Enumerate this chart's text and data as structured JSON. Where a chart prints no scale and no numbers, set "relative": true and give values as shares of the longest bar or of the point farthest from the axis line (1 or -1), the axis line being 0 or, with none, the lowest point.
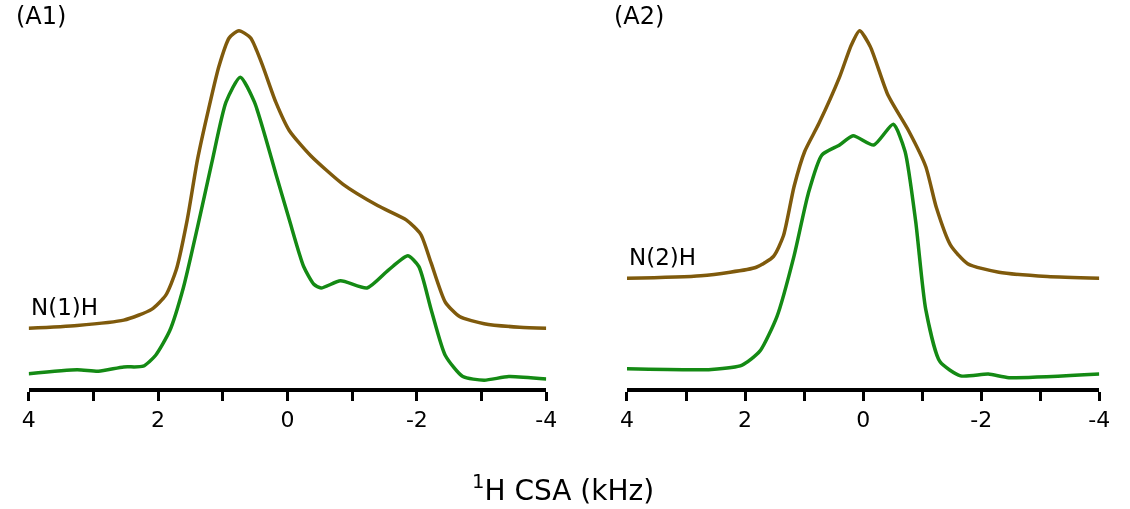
{
  "chart_data": [
    {
      "type": "line",
      "title": "(A1)",
      "xlabel": "$^{1}$H CSA (kHz)",
      "relative": true,
      "xlim": [
        4,
        -4
      ],
      "xticks": [
        4,
        {
          "value": 3,
          "label": null
        },
        2,
        {
          "value": 1,
          "label": null
        },
        0,
        {
          "value": -1,
          "label": null
        },
        -2,
        {
          "value": -3,
          "label": null
        },
        -4
      ],
      "legend": false,
      "marker": "none",
      "line_style": "solid",
      "series": [
        {
          "name": "N(1)H",
          "color": "#7f5a0c",
          "x": [
            4.0,
            3.25,
            2.53,
            2.1,
            1.88,
            1.72,
            1.55,
            1.39,
            1.22,
            1.06,
            0.9,
            0.75,
            0.57,
            0.4,
            0.18,
            -0.03,
            -0.36,
            -0.86,
            -1.4,
            -1.84,
            -2.06,
            -2.22,
            -2.44,
            -2.66,
            -3.04,
            -3.59,
            -4.0
          ],
          "values": [
            0.167,
            0.175,
            0.19,
            0.22,
            0.26,
            0.33,
            0.47,
            0.64,
            0.78,
            0.9,
            0.98,
            1.0,
            0.98,
            0.91,
            0.8,
            0.72,
            0.65,
            0.57,
            0.51,
            0.47,
            0.43,
            0.35,
            0.24,
            0.2,
            0.18,
            0.17,
            0.167
          ]
        },
        {
          "color": "#148a14",
          "x": [
            4.0,
            3.25,
            2.92,
            2.53,
            2.23,
            2.04,
            1.82,
            1.61,
            1.39,
            1.17,
            0.95,
            0.73,
            0.51,
            0.18,
            -0.03,
            -0.25,
            -0.41,
            -0.52,
            -0.82,
            -1.23,
            -1.56,
            -1.86,
            -2.03,
            -2.22,
            -2.44,
            -2.71,
            -3.04,
            -3.42,
            -4.0
          ],
          "values": [
            0.04,
            0.051,
            0.047,
            0.059,
            0.061,
            0.091,
            0.16,
            0.28,
            0.45,
            0.63,
            0.8,
            0.87,
            0.8,
            0.6,
            0.47,
            0.34,
            0.29,
            0.28,
            0.3,
            0.28,
            0.33,
            0.37,
            0.34,
            0.22,
            0.091,
            0.032,
            0.022,
            0.032,
            0.025
          ]
        }
      ]
    },
    {
      "type": "line",
      "title": "(A2)",
      "relative": true,
      "xlim": [
        4,
        -4
      ],
      "xticks": [
        4,
        {
          "value": 3,
          "label": null
        },
        2,
        {
          "value": 1,
          "label": null
        },
        0,
        {
          "value": -1,
          "label": null
        },
        -2,
        {
          "value": -3,
          "label": null
        },
        -4
      ],
      "legend": false,
      "marker": "none",
      "line_style": "solid",
      "series": [
        {
          "name": "N(2)H",
          "color": "#7f5a0c",
          "x": [
            4.0,
            2.75,
            1.81,
            1.52,
            1.35,
            1.17,
            0.99,
            0.75,
            0.4,
            0.2,
            0.06,
            -0.12,
            -0.42,
            -0.77,
            -1.06,
            -1.24,
            -1.48,
            -1.77,
            -2.3,
            -3.12,
            -4.0
          ],
          "values": [
            0.307,
            0.314,
            0.338,
            0.368,
            0.426,
            0.564,
            0.662,
            0.74,
            0.87,
            0.96,
            1.0,
            0.956,
            0.82,
            0.72,
            0.62,
            0.505,
            0.4,
            0.348,
            0.324,
            0.312,
            0.307
          ]
        },
        {
          "color": "#148a14",
          "x": [
            4.0,
            2.57,
            2.05,
            1.75,
            1.46,
            1.17,
            0.93,
            0.7,
            0.4,
            0.17,
            -0.18,
            -0.51,
            -0.71,
            -0.89,
            -1.06,
            -1.3,
            -1.65,
            -2.12,
            -2.47,
            -4.0
          ],
          "values": [
            0.054,
            0.052,
            0.064,
            0.103,
            0.2,
            0.37,
            0.544,
            0.652,
            0.68,
            0.706,
            0.68,
            0.738,
            0.662,
            0.466,
            0.22,
            0.074,
            0.034,
            0.039,
            0.029,
            0.039
          ]
        }
      ]
    }
  ]
}
